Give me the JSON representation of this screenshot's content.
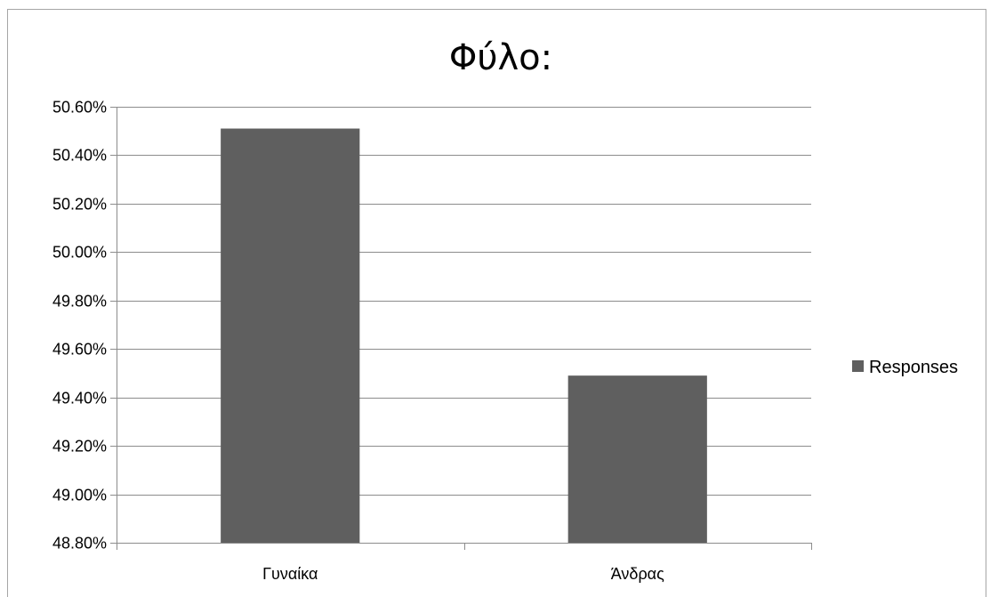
{
  "chart_data": {
    "type": "bar",
    "title": "Φύλο:",
    "categories": [
      "Γυναίκα",
      "Άνδρας"
    ],
    "series": [
      {
        "name": "Responses",
        "values": [
          50.51,
          49.49
        ],
        "color": "#5f5f5f"
      }
    ],
    "xlabel": "",
    "ylabel": "",
    "ylim": [
      48.8,
      50.6
    ],
    "yticks": [
      "48.80%",
      "49.00%",
      "49.20%",
      "49.40%",
      "49.60%",
      "49.80%",
      "50.00%",
      "50.20%",
      "50.40%",
      "50.60%"
    ],
    "grid": true,
    "legend": "right"
  }
}
